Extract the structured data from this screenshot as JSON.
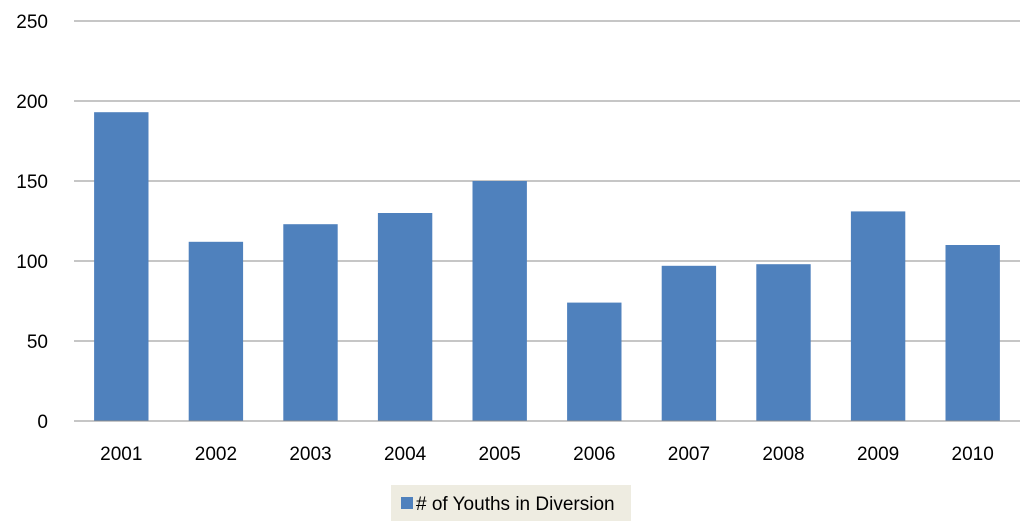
{
  "chart_data": {
    "type": "bar",
    "categories": [
      "2001",
      "2002",
      "2003",
      "2004",
      "2005",
      "2006",
      "2007",
      "2008",
      "2009",
      "2010"
    ],
    "series": [
      {
        "name": "# of Youths in Diversion",
        "values": [
          193,
          112,
          123,
          130,
          150,
          74,
          97,
          98,
          131,
          110
        ],
        "color": "#4f81bd"
      }
    ],
    "yticks": [
      "0",
      "50",
      "100",
      "150",
      "200",
      "250"
    ],
    "ylim": [
      0,
      250
    ],
    "grid": true,
    "legend": "bottom-center",
    "legend_background": "#eeece1"
  }
}
